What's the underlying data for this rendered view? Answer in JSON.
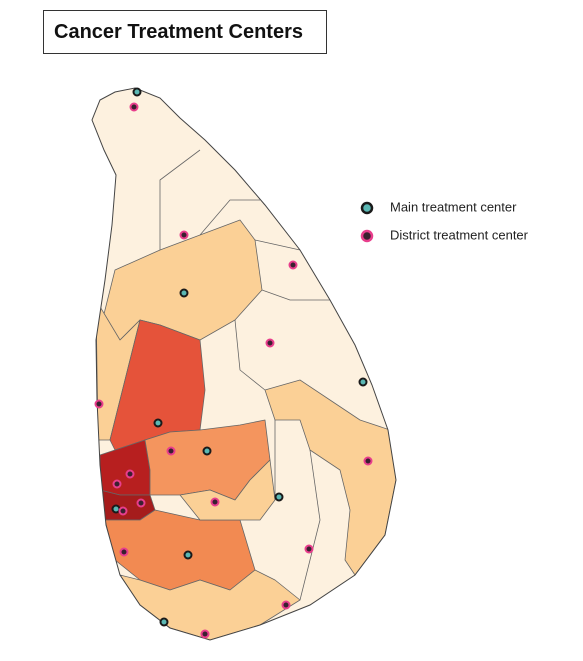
{
  "title": "Cancer Treatment Centers",
  "legend": [
    {
      "label": "Main treatment center"
    },
    {
      "label": "District treatment center"
    }
  ]
}
